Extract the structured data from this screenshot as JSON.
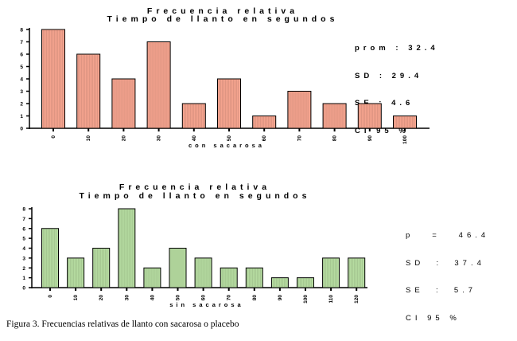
{
  "colors": {
    "bar1_fill": "#f4a38e",
    "bar2_fill": "#b5dba0",
    "axis": "#000000"
  },
  "charts": [
    {
      "title": "Frecuencia relativa",
      "subtitle": "Tiempo de llanto en segundos",
      "xlabel": "con sacarosa",
      "stats": [
        "prom : 32.4",
        "SD : 29.4",
        "SE : 4.6",
        "CI 95 %"
      ]
    },
    {
      "title": "Frecuencia relativa",
      "subtitle": "Tiempo de llanto en segundos",
      "xlabel": "sin sacarosa",
      "stats": [
        "p   =   46.4",
        "SD  :  37.4",
        "SE  :  5.7",
        "CI 95 %"
      ]
    }
  ],
  "caption": "Figura 3. Frecuencias relativas de llanto con sacarosa o placebo",
  "chart_data": [
    {
      "type": "bar",
      "title": "Frecuencia relativa",
      "subtitle": "Tiempo de llanto en segundos",
      "xlabel": "con sacarosa",
      "ylabel": "",
      "categories": [
        "0",
        "10",
        "20",
        "30",
        "40",
        "50",
        "60",
        "70",
        "80",
        "90",
        "100"
      ],
      "values": [
        8,
        6,
        4,
        7,
        2,
        4,
        1,
        3,
        2,
        2,
        1
      ],
      "yticks": [
        "0",
        "1",
        "2",
        "3",
        "4",
        "5",
        "6",
        "7",
        "8"
      ],
      "ylim": [
        0,
        8
      ]
    },
    {
      "type": "bar",
      "title": "Frecuencia relativa",
      "subtitle": "Tiempo de llanto en segundos",
      "xlabel": "sin sacarosa",
      "ylabel": "",
      "categories": [
        "0",
        "10",
        "20",
        "30",
        "40",
        "50",
        "60",
        "70",
        "80",
        "90",
        "100",
        "110",
        "120"
      ],
      "values": [
        6,
        3,
        4,
        8,
        2,
        4,
        3,
        2,
        2,
        1,
        1,
        3,
        3
      ],
      "yticks": [
        "0",
        "1",
        "2",
        "3",
        "4",
        "5",
        "6",
        "7",
        "8"
      ],
      "ylim": [
        0,
        8
      ]
    }
  ]
}
